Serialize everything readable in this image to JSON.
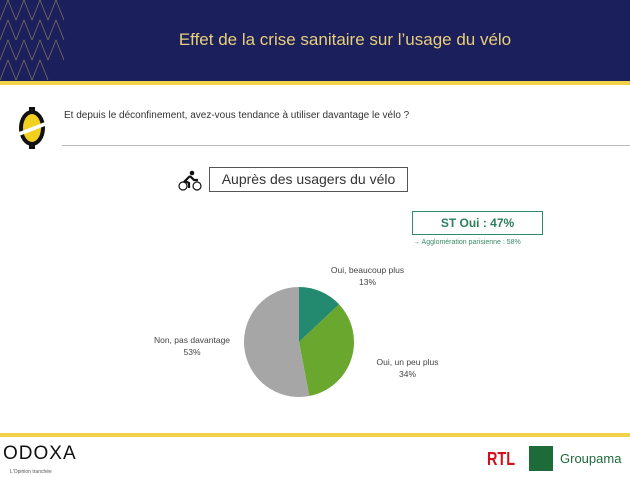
{
  "header": {
    "title": "Effet de la crise sanitaire sur l’usage du vélo"
  },
  "question": "Et depuis le déconfinement, avez-vous tendance à utiliser davantage le vélo ?",
  "subtitle": "Auprès des usagers du vélo",
  "summary": {
    "label": "ST Oui : 47%",
    "note": "→ Agglomération parisienne : 58%"
  },
  "chart_data": {
    "type": "pie",
    "title": "Auprès des usagers du vélo",
    "slices": [
      {
        "label": "Oui, beaucoup plus",
        "value": 13,
        "display": "13%",
        "color": "#238a6f"
      },
      {
        "label": "Oui, un peu plus",
        "value": 34,
        "display": "34%",
        "color": "#6aa72e"
      },
      {
        "label": "Non, pas davantage",
        "value": 53,
        "display": "53%",
        "color": "#a6a6a6"
      }
    ]
  },
  "footer": {
    "brand": "ODOXA",
    "tagline": "L'Opinion tranchée",
    "partner1": "RTL",
    "partner2": "Groupama"
  },
  "colors": {
    "navy": "#1b1f5c",
    "yellow": "#f2d24a",
    "gold": "#e8cf7a"
  }
}
